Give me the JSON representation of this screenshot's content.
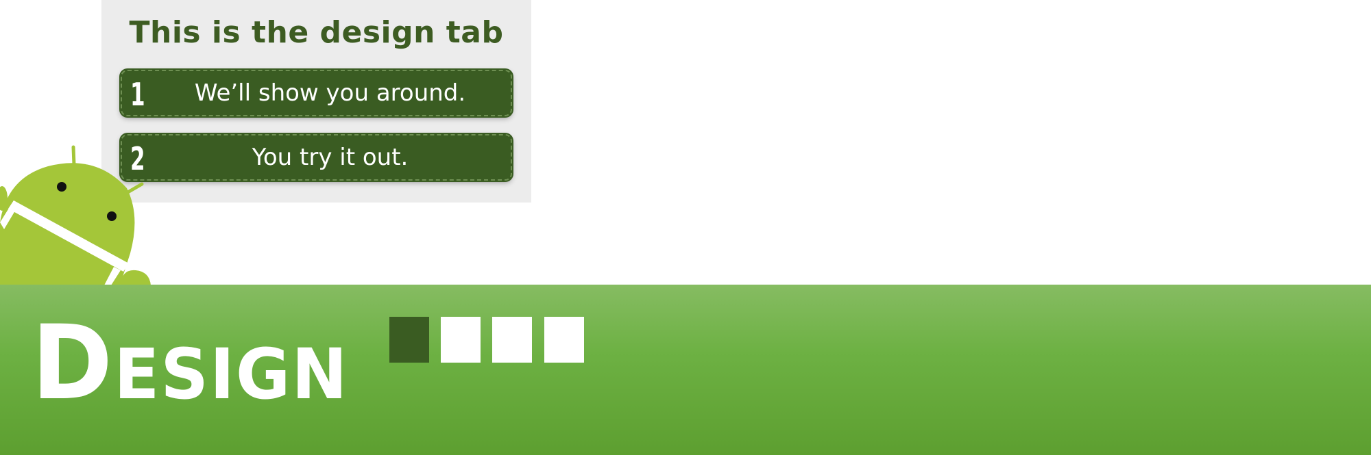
{
  "tour": {
    "title": "This is the design tab",
    "steps": [
      {
        "number": "1",
        "text": "We’ll show you around."
      },
      {
        "number": "2",
        "text": "You try it out."
      }
    ]
  },
  "banner": {
    "title_initial": "D",
    "title_rest": "ESIGN",
    "progress": {
      "total": 4,
      "current": 1
    }
  },
  "colors": {
    "dark_green": "#3a5c22",
    "banner_green": "#6db143",
    "android_green": "#a4c639",
    "card_bg": "#ececec"
  },
  "icons": [
    "android-mascot-icon"
  ]
}
